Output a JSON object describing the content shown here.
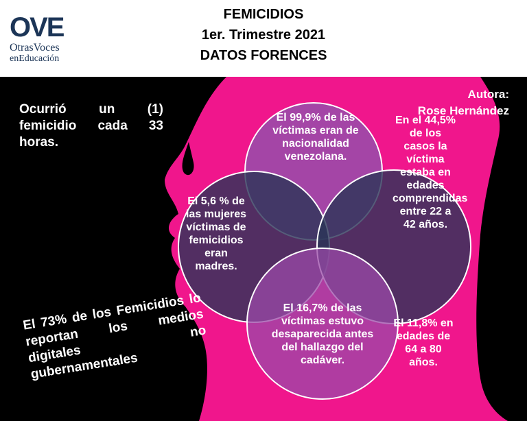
{
  "logo": {
    "mark": "OVE",
    "line1": "OtrasVoces",
    "line2": "enEducación"
  },
  "title": [
    "FEMICIDIOS",
    "1er. Trimestre 2021",
    "DATOS FORENCES"
  ],
  "author": {
    "label": "Autora:",
    "name": "Rose Hernández"
  },
  "left_note": "Ocurrió un (1) femicidio cada 33 horas.",
  "bottom_note": "El 73% de los Femicidios lo reportan los medios digitales no gubernamentales",
  "circles": {
    "top": "El 99,9% de las víctimas eran de nacionalidad venezolana.",
    "left": "El 5,6 % de las mujeres víctimas de femicidios eran madres.",
    "right": "En el 44,5% de los casos la víctima estaba en edades comprendidas entre 22 a 42 años.",
    "bottom": "El 16,7% de las víctimas estuvo desaparecida antes del hallazgo del cadáver.",
    "right_extra": "El 11,8% en edades de 64 a 80 años."
  },
  "colors": {
    "pink": "#f0168c",
    "purple": "#9b4aa8",
    "navy": "#2a3558"
  }
}
